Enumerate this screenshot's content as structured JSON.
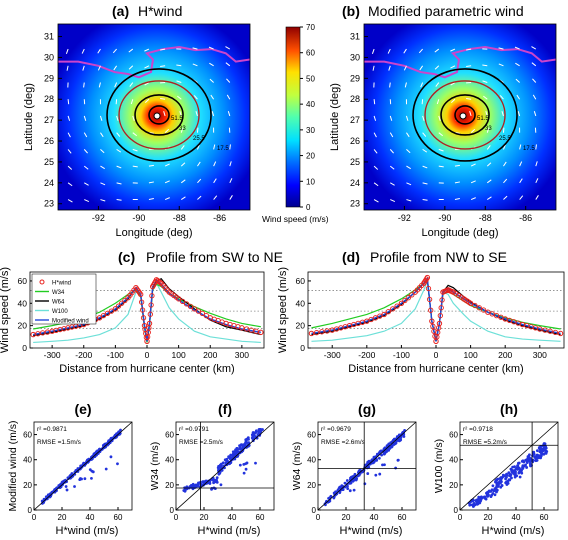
{
  "maps": [
    {
      "label": "(a)",
      "title": "H*wind"
    },
    {
      "label": "(b)",
      "title": "Modified parametric wind"
    }
  ],
  "map_axes": {
    "xlabel": "Longitude (deg)",
    "ylabel": "Latitude (deg)",
    "xticks": [
      -92,
      -90,
      -88,
      -86
    ],
    "yticks": [
      23,
      24,
      25,
      26,
      27,
      28,
      29,
      30,
      31
    ],
    "xlim": [
      -94,
      -84.5
    ],
    "ylim": [
      22.7,
      31.6
    ],
    "contour_labels": [
      "51.5",
      "33",
      "25.5",
      "17.5"
    ]
  },
  "colorbar": {
    "label": "Wind speed (m/s)",
    "ticks": [
      0,
      10,
      20,
      30,
      40,
      50,
      60,
      70
    ],
    "colors": [
      "#00008f",
      "#0000ff",
      "#0070ff",
      "#00e0ff",
      "#50ffaf",
      "#c0ff40",
      "#ffe000",
      "#ff7000",
      "#ff0000",
      "#8f0000"
    ]
  },
  "chart_data": [
    {
      "type": "line",
      "label": "(c)",
      "title": "Profile from SW to NE",
      "xlabel": "Distance from hurricane center (km)",
      "ylabel": "Wind speed (m/s)",
      "xlim": [
        -370,
        370
      ],
      "ylim": [
        0,
        68
      ],
      "xticks": [
        -300,
        -200,
        -100,
        0,
        100,
        200,
        300
      ],
      "yticks": [
        0,
        20,
        40,
        60
      ],
      "reference_lines": [
        51.5,
        33,
        17.5
      ],
      "legend_position": "top-left",
      "series": [
        {
          "name": "H*wind",
          "color": "#e8201c",
          "x": [
            -360,
            -300,
            -250,
            -200,
            -150,
            -100,
            -60,
            -35,
            -20,
            -8,
            0,
            8,
            18,
            30,
            45,
            70,
            100,
            150,
            200,
            250,
            300,
            360
          ],
          "y": [
            12,
            15,
            18,
            21,
            27,
            35,
            45,
            54,
            48,
            20,
            6,
            22,
            55,
            61,
            58,
            50,
            44,
            35,
            27,
            22,
            18,
            14
          ]
        },
        {
          "name": "W34",
          "color": "#22cc22",
          "x": [
            -360,
            -300,
            -250,
            -200,
            -150,
            -100,
            -60,
            -35,
            -20,
            -8,
            0,
            8,
            18,
            30,
            45,
            70,
            100,
            150,
            200,
            250,
            300,
            360
          ],
          "y": [
            17,
            20,
            23,
            27,
            32,
            40,
            48,
            52,
            46,
            18,
            5,
            20,
            52,
            57,
            55,
            49,
            44,
            37,
            31,
            26,
            22,
            19
          ]
        },
        {
          "name": "W64",
          "color": "#000000",
          "x": [
            -360,
            -300,
            -250,
            -200,
            -150,
            -100,
            -60,
            -35,
            -20,
            -8,
            0,
            8,
            18,
            30,
            45,
            70,
            100,
            150,
            200,
            250,
            300,
            360
          ],
          "y": [
            11,
            14,
            17,
            20,
            26,
            34,
            44,
            54,
            48,
            20,
            6,
            22,
            54,
            60,
            62,
            53,
            46,
            35,
            25,
            19,
            16,
            12
          ]
        },
        {
          "name": "W100",
          "color": "#6de0d8",
          "x": [
            -360,
            -300,
            -250,
            -200,
            -150,
            -100,
            -60,
            -35,
            -20,
            -8,
            0,
            8,
            18,
            30,
            45,
            70,
            100,
            150,
            200,
            250,
            300,
            360
          ],
          "y": [
            5,
            6,
            7,
            9,
            12,
            18,
            30,
            50,
            48,
            20,
            6,
            22,
            53,
            58,
            50,
            36,
            26,
            15,
            10,
            8,
            6,
            5
          ]
        },
        {
          "name": "Modified wind",
          "color": "#2248d8",
          "x": [
            -360,
            -300,
            -250,
            -200,
            -150,
            -100,
            -60,
            -35,
            -20,
            -8,
            0,
            8,
            18,
            30,
            45,
            70,
            100,
            150,
            200,
            250,
            300,
            360
          ],
          "y": [
            12,
            15,
            18,
            21,
            27,
            35,
            45,
            54,
            48,
            20,
            6,
            22,
            55,
            61,
            57,
            49,
            43,
            34,
            26,
            21,
            17,
            14
          ]
        }
      ]
    },
    {
      "type": "line",
      "label": "(d)",
      "title": "Profile from NW to SE",
      "xlabel": "Distance from hurricane center (km)",
      "ylabel": "Wind speed (m/s)",
      "xlim": [
        -370,
        370
      ],
      "ylim": [
        0,
        68
      ],
      "xticks": [
        -300,
        -200,
        -100,
        0,
        100,
        200,
        300
      ],
      "yticks": [
        0,
        20,
        40,
        60
      ],
      "reference_lines": [
        51.5,
        33,
        17.5
      ],
      "series": [
        {
          "name": "H*wind",
          "color": "#e8201c",
          "x": [
            -360,
            -300,
            -250,
            -200,
            -150,
            -100,
            -60,
            -35,
            -25,
            -12,
            0,
            10,
            20,
            35,
            50,
            80,
            100,
            150,
            200,
            250,
            300,
            360
          ],
          "y": [
            13,
            16,
            20,
            24,
            30,
            40,
            50,
            58,
            63,
            24,
            6,
            22,
            50,
            52,
            50,
            44,
            40,
            32,
            26,
            21,
            17,
            13
          ]
        },
        {
          "name": "W34",
          "color": "#22cc22",
          "x": [
            -360,
            -300,
            -250,
            -200,
            -150,
            -100,
            -60,
            -35,
            -25,
            -12,
            0,
            10,
            20,
            35,
            50,
            80,
            100,
            150,
            200,
            250,
            300,
            360
          ],
          "y": [
            18,
            22,
            26,
            30,
            36,
            44,
            52,
            58,
            60,
            24,
            6,
            22,
            48,
            51,
            48,
            42,
            38,
            32,
            27,
            23,
            20,
            17
          ]
        },
        {
          "name": "W64",
          "color": "#000000",
          "x": [
            -360,
            -300,
            -250,
            -200,
            -150,
            -100,
            -60,
            -35,
            -25,
            -12,
            0,
            10,
            20,
            35,
            50,
            80,
            100,
            150,
            200,
            250,
            300,
            360
          ],
          "y": [
            12,
            15,
            19,
            23,
            29,
            39,
            50,
            58,
            62,
            24,
            6,
            22,
            50,
            56,
            54,
            46,
            41,
            32,
            25,
            20,
            16,
            12
          ]
        },
        {
          "name": "W100",
          "color": "#6de0d8",
          "x": [
            -360,
            -300,
            -250,
            -200,
            -150,
            -100,
            -60,
            -35,
            -25,
            -12,
            0,
            10,
            20,
            35,
            50,
            80,
            100,
            150,
            200,
            250,
            300,
            360
          ],
          "y": [
            6,
            7,
            9,
            11,
            15,
            22,
            35,
            52,
            60,
            24,
            6,
            22,
            50,
            48,
            40,
            30,
            24,
            15,
            10,
            8,
            7,
            6
          ]
        },
        {
          "name": "Modified wind",
          "color": "#2248d8",
          "x": [
            -360,
            -300,
            -250,
            -200,
            -150,
            -100,
            -60,
            -35,
            -25,
            -12,
            0,
            10,
            20,
            35,
            50,
            80,
            100,
            150,
            200,
            250,
            300,
            360
          ],
          "y": [
            13,
            16,
            20,
            24,
            30,
            40,
            50,
            58,
            62,
            24,
            6,
            22,
            50,
            53,
            50,
            44,
            40,
            32,
            26,
            21,
            17,
            13
          ]
        }
      ]
    },
    {
      "type": "scatter",
      "label": "(e)",
      "xlabel": "H*wind (m/s)",
      "ylabel": "Modified wind (m/s)",
      "xlim": [
        0,
        70
      ],
      "ylim": [
        0,
        70
      ],
      "xticks": [
        0,
        20,
        40,
        60
      ],
      "yticks": [
        0,
        20,
        40,
        60
      ],
      "r2": "r² =0.9871",
      "rmse": "RMSE =1.5m/s",
      "fit": {
        "type": "identity",
        "slope": 1.0,
        "offset": 0.5,
        "spread": 1.5
      },
      "threshold": null
    },
    {
      "type": "scatter",
      "label": "(f)",
      "xlabel": "H*wind (m/s)",
      "ylabel": "W34 (m/s)",
      "xlim": [
        0,
        70
      ],
      "ylim": [
        0,
        70
      ],
      "xticks": [
        0,
        20,
        40,
        60
      ],
      "yticks": [
        0,
        20,
        40,
        60
      ],
      "r2": "r² =0.9791",
      "rmse": "RMSE =2.5m/s",
      "fit": {
        "type": "curve",
        "slope": 1.0,
        "offset": 2.0,
        "spread": 2.5
      },
      "threshold": 17.5
    },
    {
      "type": "scatter",
      "label": "(g)",
      "xlabel": "H*wind (m/s)",
      "ylabel": "W64 (m/s)",
      "xlim": [
        0,
        70
      ],
      "ylim": [
        0,
        70
      ],
      "xticks": [
        0,
        20,
        40,
        60
      ],
      "yticks": [
        0,
        20,
        40,
        60
      ],
      "r2": "r² =0.9679",
      "rmse": "RMSE =2.6m/s",
      "fit": {
        "type": "identity",
        "slope": 0.97,
        "offset": 1.0,
        "spread": 2.6
      },
      "threshold": 33
    },
    {
      "type": "scatter",
      "label": "(h)",
      "xlabel": "H*wind (m/s)",
      "ylabel": "W100 (m/s)",
      "xlim": [
        0,
        70
      ],
      "ylim": [
        0,
        70
      ],
      "xticks": [
        0,
        20,
        40,
        60
      ],
      "yticks": [
        0,
        20,
        40,
        60
      ],
      "r2": "r² =0.9718",
      "rmse": "RMSE =5.2m/s",
      "fit": {
        "type": "low",
        "slope": 0.85,
        "offset": -3.0,
        "spread": 5.2
      },
      "threshold": 51.5
    }
  ]
}
